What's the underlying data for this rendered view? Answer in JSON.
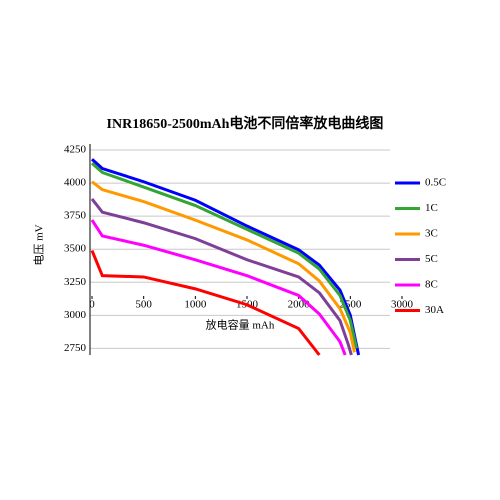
{
  "chart_data": {
    "type": "line",
    "title": "INR18650-2500mAh电池不同倍率放电曲线图",
    "y_label": "电压 mV",
    "x_label": "放电容量 mAh",
    "xlim": [
      0,
      3000
    ],
    "xticks": [
      0,
      500,
      1000,
      1500,
      2000,
      2500,
      3000
    ],
    "ylim": [
      2700,
      4250
    ],
    "yticks": [
      2750,
      3000,
      3250,
      3500,
      3750,
      4000,
      4250
    ],
    "grid": true,
    "legend": "right",
    "series": [
      {
        "name": "0.5C",
        "color": "#0000ff",
        "x": [
          0,
          100,
          500,
          1000,
          1500,
          2000,
          2200,
          2400,
          2500,
          2550,
          2580
        ],
        "values": [
          4180,
          4110,
          4010,
          3870,
          3675,
          3495,
          3380,
          3190,
          3000,
          2810,
          2700
        ]
      },
      {
        "name": "1C",
        "color": "#33a533",
        "x": [
          0,
          100,
          500,
          1000,
          1500,
          2000,
          2200,
          2400,
          2500,
          2560
        ],
        "values": [
          4150,
          4080,
          3970,
          3830,
          3650,
          3470,
          3350,
          3150,
          2960,
          2750
        ]
      },
      {
        "name": "3C",
        "color": "#ff9900",
        "x": [
          0,
          100,
          500,
          1000,
          1500,
          2000,
          2200,
          2400,
          2500,
          2540
        ],
        "values": [
          4010,
          3950,
          3860,
          3720,
          3570,
          3390,
          3260,
          3050,
          2870,
          2720
        ]
      },
      {
        "name": "5C",
        "color": "#7f3f98",
        "x": [
          0,
          100,
          500,
          1000,
          1500,
          2000,
          2200,
          2400,
          2480,
          2510
        ],
        "values": [
          3880,
          3780,
          3700,
          3580,
          3420,
          3290,
          3170,
          2960,
          2780,
          2700
        ]
      },
      {
        "name": "8C",
        "color": "#ff00ff",
        "x": [
          0,
          100,
          500,
          1000,
          1500,
          2000,
          2200,
          2400,
          2450
        ],
        "values": [
          3720,
          3600,
          3530,
          3420,
          3300,
          3150,
          3010,
          2800,
          2700
        ]
      },
      {
        "name": "30A",
        "color": "#ff0000",
        "x": [
          0,
          100,
          500,
          1000,
          1500,
          2000,
          2200
        ],
        "values": [
          3490,
          3300,
          3290,
          3200,
          3080,
          2900,
          2700
        ]
      }
    ]
  }
}
